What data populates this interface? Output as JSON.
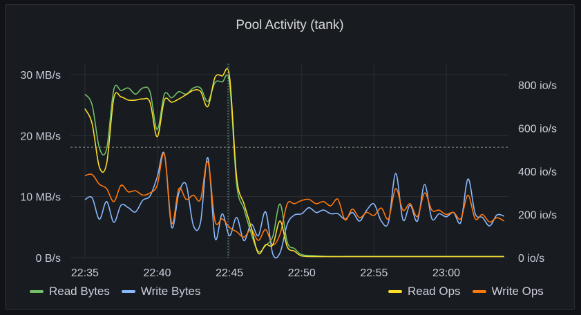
{
  "panel": {
    "title": "Pool Activity (tank)"
  },
  "colors": {
    "read_bytes": "#73bf69",
    "write_bytes": "#8ab8ff",
    "read_ops": "#fade2a",
    "write_ops": "#ff780a",
    "grid": "#2c2f35",
    "background": "#181b1f"
  },
  "chart_data": {
    "type": "line",
    "title": "Pool Activity (tank)",
    "x_unit": "minutes after 22:35",
    "x_ticks": [
      "22:35",
      "22:40",
      "22:45",
      "22:50",
      "22:55",
      "23:00"
    ],
    "x_tick_values": [
      0,
      5,
      10,
      15,
      20,
      25
    ],
    "xlim": [
      -1,
      29.3
    ],
    "y_left": {
      "ticks": [
        "0 B/s",
        "10 MB/s",
        "20 MB/s",
        "30 MB/s"
      ],
      "tick_values": [
        0,
        10,
        20,
        30
      ],
      "range": [
        0,
        30
      ],
      "unit": "MB/s"
    },
    "y_right": {
      "ticks": [
        "0 io/s",
        "200 io/s",
        "400 io/s",
        "600 io/s",
        "800 io/s"
      ],
      "tick_values": [
        0,
        200,
        400,
        600,
        800
      ],
      "range": [
        0,
        880
      ],
      "unit": "io/s"
    },
    "threshold_line": {
      "axis": "left",
      "value": 18.1
    },
    "cursor_line_x": 9.9,
    "legend_left": [
      "Read Bytes",
      "Write Bytes"
    ],
    "legend_right": [
      "Read Ops",
      "Write Ops"
    ],
    "series": [
      {
        "name": "Read Bytes",
        "axis": "left",
        "color": "#73bf69",
        "x": [
          0,
          0.5,
          1,
          1.5,
          2,
          2.5,
          3,
          3.5,
          4,
          4.5,
          5,
          5.5,
          6,
          6.5,
          7,
          7.5,
          8,
          8.5,
          9,
          9.5,
          10,
          10.5,
          11,
          11.5,
          12,
          12.5,
          13,
          13.5,
          14,
          14.5,
          15,
          16,
          17,
          18,
          19,
          20,
          21,
          22,
          23,
          24,
          25,
          26,
          27,
          28,
          29
        ],
        "y": [
          26.8,
          25.0,
          18.0,
          17.8,
          27.6,
          27.4,
          27.8,
          26.8,
          27.8,
          27.2,
          21.0,
          26.8,
          26.2,
          27.2,
          26.8,
          27.8,
          27.8,
          25.6,
          28.7,
          28.8,
          28.7,
          12.0,
          8.0,
          4.0,
          1.0,
          2.0,
          3.5,
          8.8,
          2.5,
          1.5,
          0.5,
          0.3,
          0.2,
          0.2,
          0.2,
          0.2,
          0.2,
          0.2,
          0.2,
          0.2,
          0.2,
          0.2,
          0.2,
          0.2,
          0.2
        ]
      },
      {
        "name": "Write Bytes",
        "axis": "left",
        "color": "#8ab8ff",
        "x": [
          0,
          0.5,
          1,
          1.5,
          2,
          2.5,
          3,
          3.5,
          4,
          4.5,
          5,
          5.5,
          6,
          6.5,
          7,
          7.5,
          8,
          8.5,
          9,
          9.5,
          10,
          10.5,
          11,
          11.5,
          12,
          12.5,
          13,
          13.5,
          14,
          14.5,
          15,
          15.5,
          16,
          16.5,
          17,
          17.5,
          18,
          18.5,
          19,
          19.5,
          20,
          20.5,
          21,
          21.5,
          22,
          22.5,
          23,
          23.5,
          24,
          24.5,
          25,
          25.5,
          26,
          26.5,
          27,
          27.5,
          28,
          28.5,
          29
        ],
        "y": [
          9.5,
          9.8,
          6.3,
          9.2,
          5.8,
          8.6,
          8.2,
          7.5,
          9.4,
          10.1,
          13.2,
          17.0,
          5.0,
          10.6,
          12.0,
          5.3,
          5.8,
          16.4,
          3.2,
          7.2,
          3.6,
          6.6,
          2.8,
          5.5,
          3.6,
          7.5,
          0.6,
          0.8,
          5.5,
          7.0,
          7.2,
          8.2,
          7.4,
          7.8,
          7.2,
          7.2,
          6.3,
          7.4,
          6.0,
          7.8,
          8.8,
          6.0,
          5.8,
          13.8,
          6.2,
          8.6,
          6.0,
          12.0,
          6.4,
          7.2,
          6.7,
          7.4,
          5.8,
          12.9,
          7.2,
          6.6,
          5.2,
          7.0,
          6.8
        ]
      },
      {
        "name": "Read Ops",
        "axis": "right",
        "color": "#fade2a",
        "x": [
          0,
          0.5,
          1,
          1.5,
          2,
          2.5,
          3,
          3.5,
          4,
          4.5,
          5,
          5.5,
          6,
          6.5,
          7,
          7.5,
          8,
          8.5,
          9,
          9.5,
          10,
          10.5,
          11,
          11.5,
          12,
          12.5,
          13,
          13.5,
          14,
          14.5,
          15,
          16,
          17,
          18,
          19,
          20,
          21,
          22,
          23,
          24,
          25,
          26,
          27,
          28,
          29
        ],
        "y": [
          690,
          620,
          420,
          435,
          740,
          745,
          730,
          730,
          735,
          720,
          560,
          730,
          720,
          735,
          755,
          775,
          770,
          700,
          835,
          842,
          840,
          370,
          250,
          140,
          20,
          60,
          60,
          170,
          50,
          30,
          8,
          5,
          5,
          5,
          5,
          5,
          5,
          5,
          5,
          5,
          5,
          5,
          5,
          5,
          5
        ]
      },
      {
        "name": "Write Ops",
        "axis": "right",
        "color": "#ff780a",
        "x": [
          0,
          0.5,
          1,
          1.5,
          2,
          2.5,
          3,
          3.5,
          4,
          4.5,
          5,
          5.5,
          6,
          6.5,
          7,
          7.5,
          8,
          8.5,
          9,
          9.5,
          10,
          10.5,
          11,
          11.5,
          12,
          12.5,
          13,
          13.5,
          14,
          14.5,
          15,
          15.5,
          16,
          16.5,
          17,
          17.5,
          18,
          18.5,
          19,
          19.5,
          20,
          20.5,
          21,
          21.5,
          22,
          22.5,
          23,
          23.5,
          24,
          24.5,
          25,
          25.5,
          26,
          26.5,
          27,
          27.5,
          28,
          28.5,
          29
        ],
        "y": [
          380,
          385,
          340,
          320,
          260,
          335,
          305,
          310,
          290,
          300,
          335,
          480,
          160,
          320,
          270,
          290,
          270,
          445,
          170,
          180,
          140,
          120,
          95,
          130,
          80,
          130,
          60,
          110,
          250,
          250,
          265,
          270,
          250,
          260,
          240,
          270,
          175,
          225,
          185,
          210,
          195,
          230,
          180,
          320,
          220,
          250,
          190,
          300,
          220,
          220,
          200,
          210,
          180,
          290,
          180,
          200,
          165,
          185,
          170
        ]
      }
    ]
  }
}
